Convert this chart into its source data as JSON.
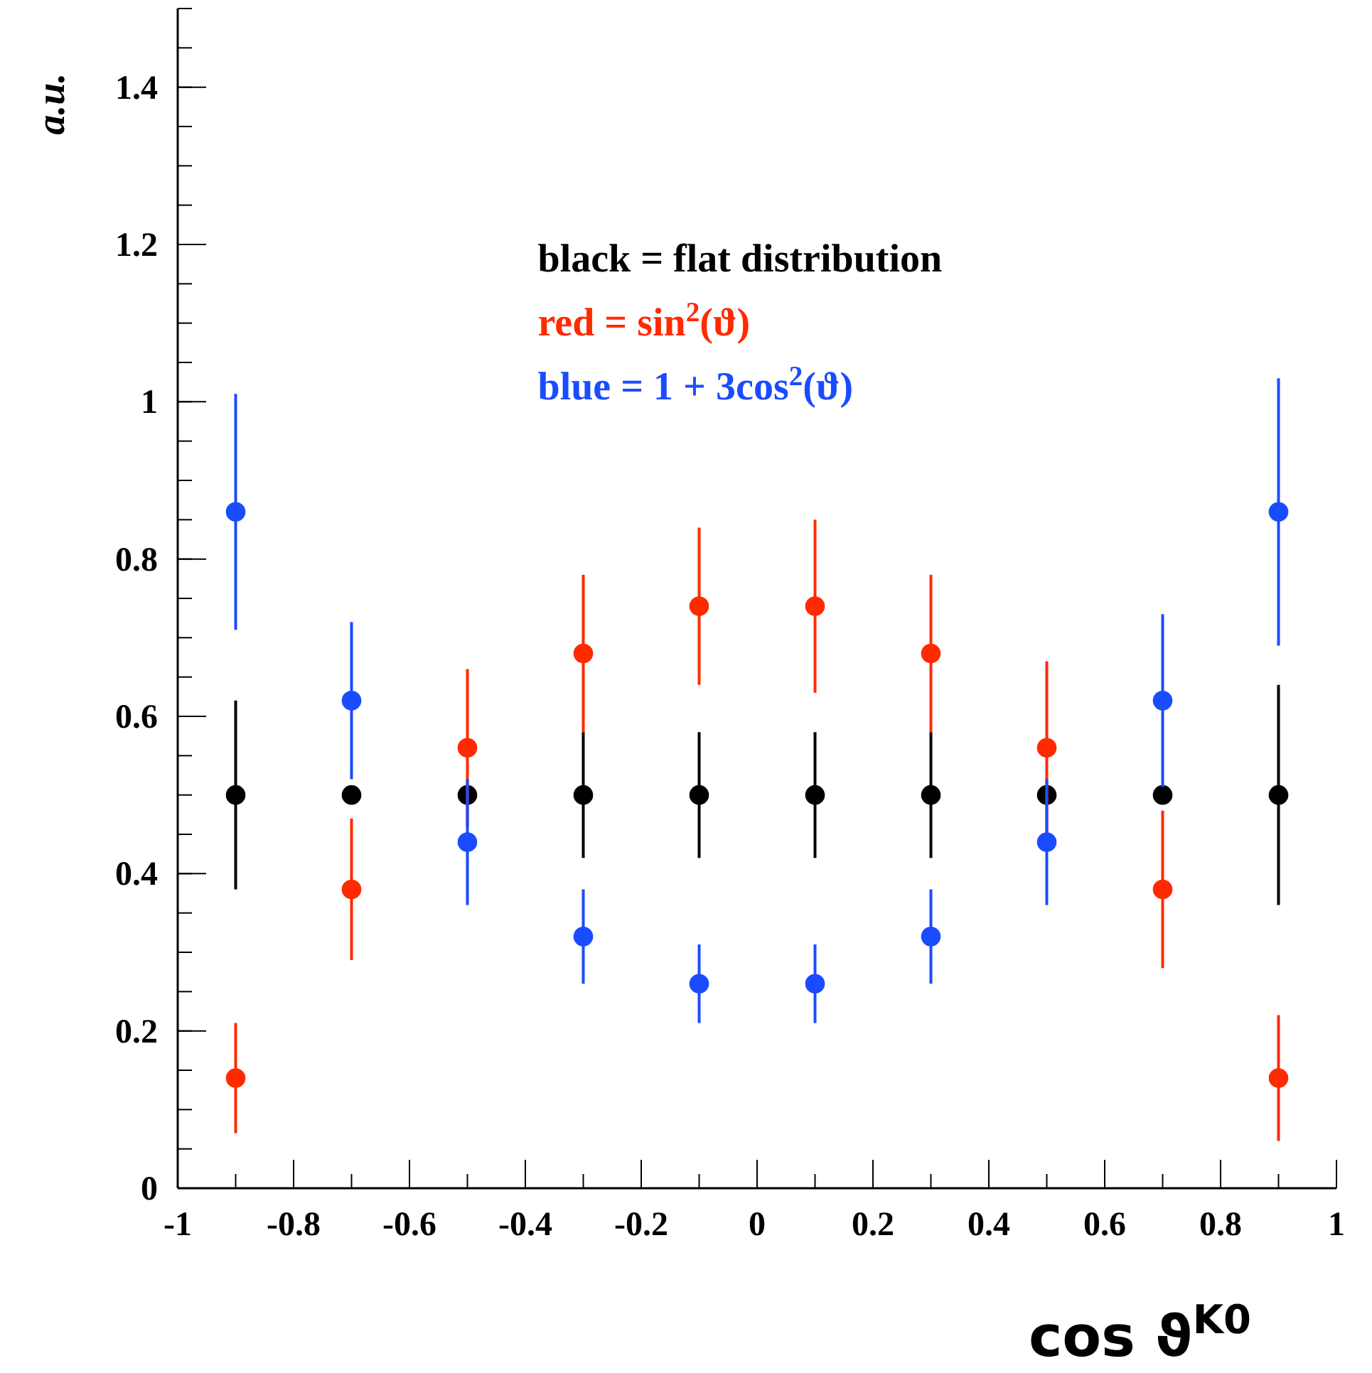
{
  "chart_data": {
    "type": "scatter",
    "ylabel": "a.u.",
    "xlabel": "cos ϑ$^{K0}$",
    "x": [
      -0.9,
      -0.7,
      -0.5,
      -0.3,
      -0.1,
      0.1,
      0.3,
      0.5,
      0.7,
      0.9
    ],
    "xlim": [
      -1,
      1
    ],
    "xticks": [
      -1,
      -0.8,
      -0.6,
      -0.4,
      -0.2,
      0,
      0.2,
      0.4,
      0.6,
      0.8,
      1
    ],
    "ylim": [
      0,
      1.5
    ],
    "yticks": [
      0,
      0.2,
      0.4,
      0.6,
      0.8,
      1,
      1.2,
      1.4
    ],
    "marker": "circle",
    "grid": false,
    "series": [
      {
        "color": "#000000",
        "values": [
          0.5,
          0.5,
          0.5,
          0.5,
          0.5,
          0.5,
          0.5,
          0.5,
          0.5,
          0.5
        ],
        "errors": [
          0.12,
          null,
          null,
          0.08,
          0.08,
          0.08,
          0.08,
          null,
          null,
          0.14
        ]
      },
      {
        "color": "#ff2a00",
        "values": [
          0.14,
          0.38,
          0.56,
          0.68,
          0.74,
          0.74,
          0.68,
          0.56,
          0.38,
          0.14
        ],
        "errors": [
          0.07,
          0.09,
          0.1,
          0.1,
          0.1,
          0.11,
          0.1,
          0.11,
          0.1,
          0.08
        ]
      },
      {
        "color": "#1a4cff",
        "values": [
          0.86,
          0.62,
          0.44,
          0.32,
          0.26,
          0.26,
          0.32,
          0.44,
          0.62,
          0.86
        ],
        "errors": [
          0.15,
          0.1,
          0.08,
          0.06,
          0.05,
          0.05,
          0.06,
          0.08,
          0.11,
          0.17
        ]
      }
    ],
    "annotations": [
      "black = flat distribution",
      "red = sin$^{2}$(ϑ)",
      "blue = 1 + 3cos$^{2}$(ϑ)"
    ]
  }
}
